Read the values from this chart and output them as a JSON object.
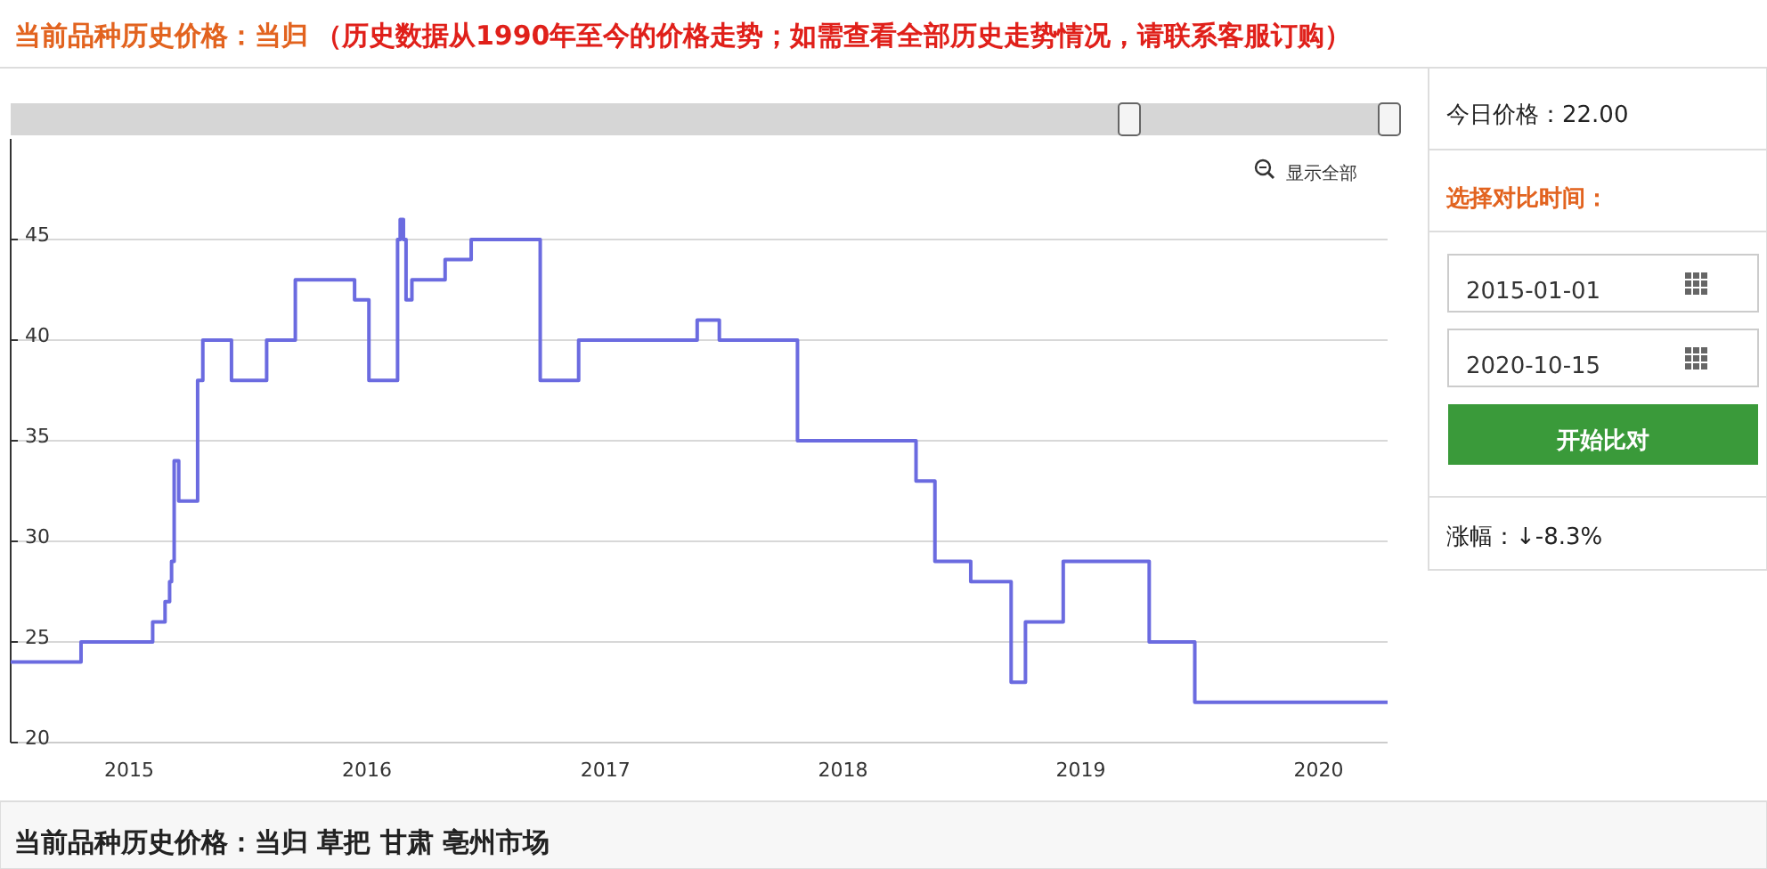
{
  "chart_data": {
    "type": "step",
    "title": "当前品种历史价格：当归",
    "subtitle": "（历史数据从1990年至今的价格走势；如需查看全部历史走势情况，请联系客服订购）",
    "x": [
      "2014-07-03",
      "2014-10-19",
      "2015-02-06",
      "2015-02-25",
      "2015-03-04",
      "2015-03-07",
      "2015-03-11",
      "2015-03-18",
      "2015-04-16",
      "2015-04-24",
      "2015-06-07",
      "2015-07-31",
      "2015-09-13",
      "2015-12-13",
      "2016-01-04",
      "2016-02-17",
      "2016-02-21",
      "2016-02-26",
      "2016-03-01",
      "2016-03-10",
      "2016-04-30",
      "2016-06-09",
      "2016-09-23",
      "2016-11-21",
      "2017-05-22",
      "2017-06-25",
      "2017-10-23",
      "2018-04-23",
      "2018-05-22",
      "2018-07-16",
      "2018-09-16",
      "2018-10-08",
      "2018-12-05",
      "2019-04-16",
      "2019-06-25",
      "2020-04-16"
    ],
    "series": [
      {
        "color": "#6b6be0",
        "values": [
          24,
          25,
          26,
          27,
          28,
          29,
          34,
          32,
          38,
          40,
          38,
          40,
          43,
          42,
          38,
          45,
          46,
          45,
          42,
          43,
          44,
          45,
          38,
          40,
          41,
          40,
          35,
          33,
          29,
          28,
          23,
          26,
          29,
          25,
          22,
          22
        ]
      }
    ],
    "xlim": [
      "2014-07-03",
      "2020-04-16"
    ],
    "xticks": [
      "2015",
      "2016",
      "2017",
      "2018",
      "2019",
      "2020"
    ],
    "ylim": [
      20,
      50
    ],
    "yticks": [
      20,
      25,
      30,
      35,
      40,
      45
    ],
    "grid": "y",
    "annotations": [
      "显示全部",
      "今日价格：22.00",
      "选择对比时间：",
      "2015-01-01",
      "2020-10-15",
      "开始比对",
      "涨幅：↓-8.3%",
      "当前品种历史价格：当归 草把 甘肃 亳州市场"
    ]
  }
}
